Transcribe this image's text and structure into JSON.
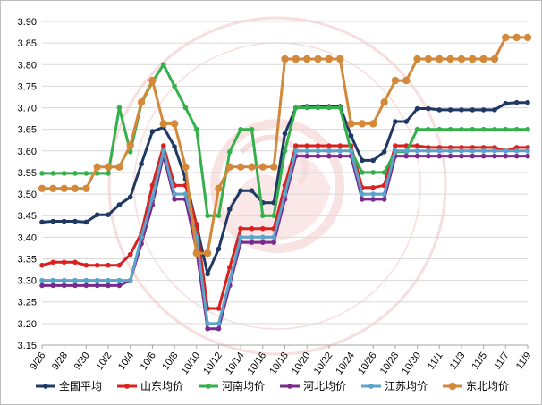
{
  "chart_data": {
    "type": "line",
    "x": [
      "9/26",
      "9/27",
      "9/28",
      "9/29",
      "9/30",
      "10/1",
      "10/2",
      "10/3",
      "10/4",
      "10/5",
      "10/6",
      "10/7",
      "10/8",
      "10/9",
      "10/10",
      "10/11",
      "10/12",
      "10/13",
      "10/14",
      "10/15",
      "10/16",
      "10/17",
      "10/18",
      "10/19",
      "10/20",
      "10/21",
      "10/22",
      "10/23",
      "10/24",
      "10/25",
      "10/26",
      "10/27",
      "10/28",
      "10/29",
      "10/30",
      "10/31",
      "11/1",
      "11/2",
      "11/3",
      "11/4",
      "11/5",
      "11/6",
      "11/7",
      "11/8",
      "11/9"
    ],
    "x_tick_labels": [
      "9/26",
      "9/28",
      "9/30",
      "10/2",
      "10/4",
      "10/6",
      "10/8",
      "10/10",
      "10/12",
      "10/14",
      "10/16",
      "10/18",
      "10/20",
      "10/22",
      "10/24",
      "10/26",
      "10/28",
      "10/30",
      "11/1",
      "11/3",
      "11/5",
      "11/7",
      "11/9"
    ],
    "ylim": [
      3.15,
      3.9
    ],
    "y_ticks": [
      "3.15",
      "3.20",
      "3.25",
      "3.30",
      "3.35",
      "3.40",
      "3.45",
      "3.50",
      "3.55",
      "3.60",
      "3.65",
      "3.70",
      "3.75",
      "3.80",
      "3.85",
      "3.90"
    ],
    "grid": "horizontal",
    "legend_position": "bottom",
    "series": [
      {
        "name": "全国平均",
        "color": "#1f3864",
        "values": [
          3.435,
          3.437,
          3.437,
          3.437,
          3.435,
          3.452,
          3.452,
          3.475,
          3.493,
          3.57,
          3.645,
          3.655,
          3.61,
          3.535,
          3.428,
          3.315,
          3.373,
          3.465,
          3.508,
          3.508,
          3.48,
          3.48,
          3.64,
          3.7,
          3.703,
          3.703,
          3.703,
          3.703,
          3.635,
          3.578,
          3.578,
          3.598,
          3.668,
          3.668,
          3.698,
          3.698,
          3.695,
          3.695,
          3.695,
          3.695,
          3.695,
          3.695,
          3.71,
          3.712,
          3.712
        ]
      },
      {
        "name": "山东均价",
        "color": "#d9211f",
        "values": [
          3.335,
          3.342,
          3.342,
          3.342,
          3.335,
          3.335,
          3.335,
          3.335,
          3.36,
          3.41,
          3.52,
          3.612,
          3.52,
          3.52,
          3.43,
          3.235,
          3.235,
          3.33,
          3.42,
          3.42,
          3.42,
          3.42,
          3.52,
          3.612,
          3.612,
          3.612,
          3.612,
          3.612,
          3.612,
          3.515,
          3.515,
          3.52,
          3.612,
          3.612,
          3.612,
          3.608,
          3.608,
          3.608,
          3.608,
          3.608,
          3.608,
          3.608,
          3.6,
          3.608,
          3.608
        ]
      },
      {
        "name": "河南均价",
        "color": "#33b04a",
        "values": [
          3.548,
          3.548,
          3.548,
          3.548,
          3.548,
          3.548,
          3.548,
          3.7,
          3.598,
          3.71,
          3.76,
          3.8,
          3.75,
          3.7,
          3.65,
          3.45,
          3.45,
          3.598,
          3.65,
          3.65,
          3.45,
          3.45,
          3.6,
          3.7,
          3.7,
          3.7,
          3.7,
          3.7,
          3.6,
          3.55,
          3.55,
          3.55,
          3.598,
          3.598,
          3.65,
          3.65,
          3.65,
          3.65,
          3.65,
          3.65,
          3.65,
          3.65,
          3.65,
          3.65,
          3.65
        ]
      },
      {
        "name": "河北均价",
        "color": "#7a2a8c",
        "values": [
          3.288,
          3.288,
          3.288,
          3.288,
          3.288,
          3.288,
          3.288,
          3.288,
          3.3,
          3.385,
          3.475,
          3.59,
          3.488,
          3.488,
          3.37,
          3.188,
          3.188,
          3.288,
          3.388,
          3.388,
          3.388,
          3.388,
          3.488,
          3.588,
          3.588,
          3.588,
          3.588,
          3.588,
          3.588,
          3.488,
          3.488,
          3.488,
          3.588,
          3.588,
          3.588,
          3.588,
          3.588,
          3.588,
          3.588,
          3.588,
          3.588,
          3.588,
          3.588,
          3.588,
          3.588
        ]
      },
      {
        "name": "江苏均价",
        "color": "#5ba3c9",
        "values": [
          3.3,
          3.3,
          3.3,
          3.3,
          3.3,
          3.3,
          3.3,
          3.3,
          3.3,
          3.4,
          3.49,
          3.6,
          3.5,
          3.5,
          3.4,
          3.2,
          3.2,
          3.3,
          3.4,
          3.4,
          3.4,
          3.4,
          3.5,
          3.6,
          3.6,
          3.6,
          3.6,
          3.6,
          3.6,
          3.5,
          3.5,
          3.5,
          3.6,
          3.6,
          3.6,
          3.6,
          3.6,
          3.6,
          3.6,
          3.6,
          3.6,
          3.6,
          3.6,
          3.6,
          3.6
        ]
      },
      {
        "name": "东北均价",
        "color": "#d4883a",
        "values": [
          3.513,
          3.513,
          3.513,
          3.513,
          3.513,
          3.563,
          3.563,
          3.563,
          3.613,
          3.713,
          3.763,
          3.663,
          3.663,
          3.563,
          3.363,
          3.363,
          3.513,
          3.563,
          3.563,
          3.563,
          3.563,
          3.563,
          3.813,
          3.813,
          3.813,
          3.813,
          3.813,
          3.813,
          3.663,
          3.663,
          3.663,
          3.713,
          3.763,
          3.763,
          3.813,
          3.813,
          3.813,
          3.813,
          3.813,
          3.813,
          3.813,
          3.813,
          3.863,
          3.863,
          3.863
        ]
      }
    ]
  }
}
